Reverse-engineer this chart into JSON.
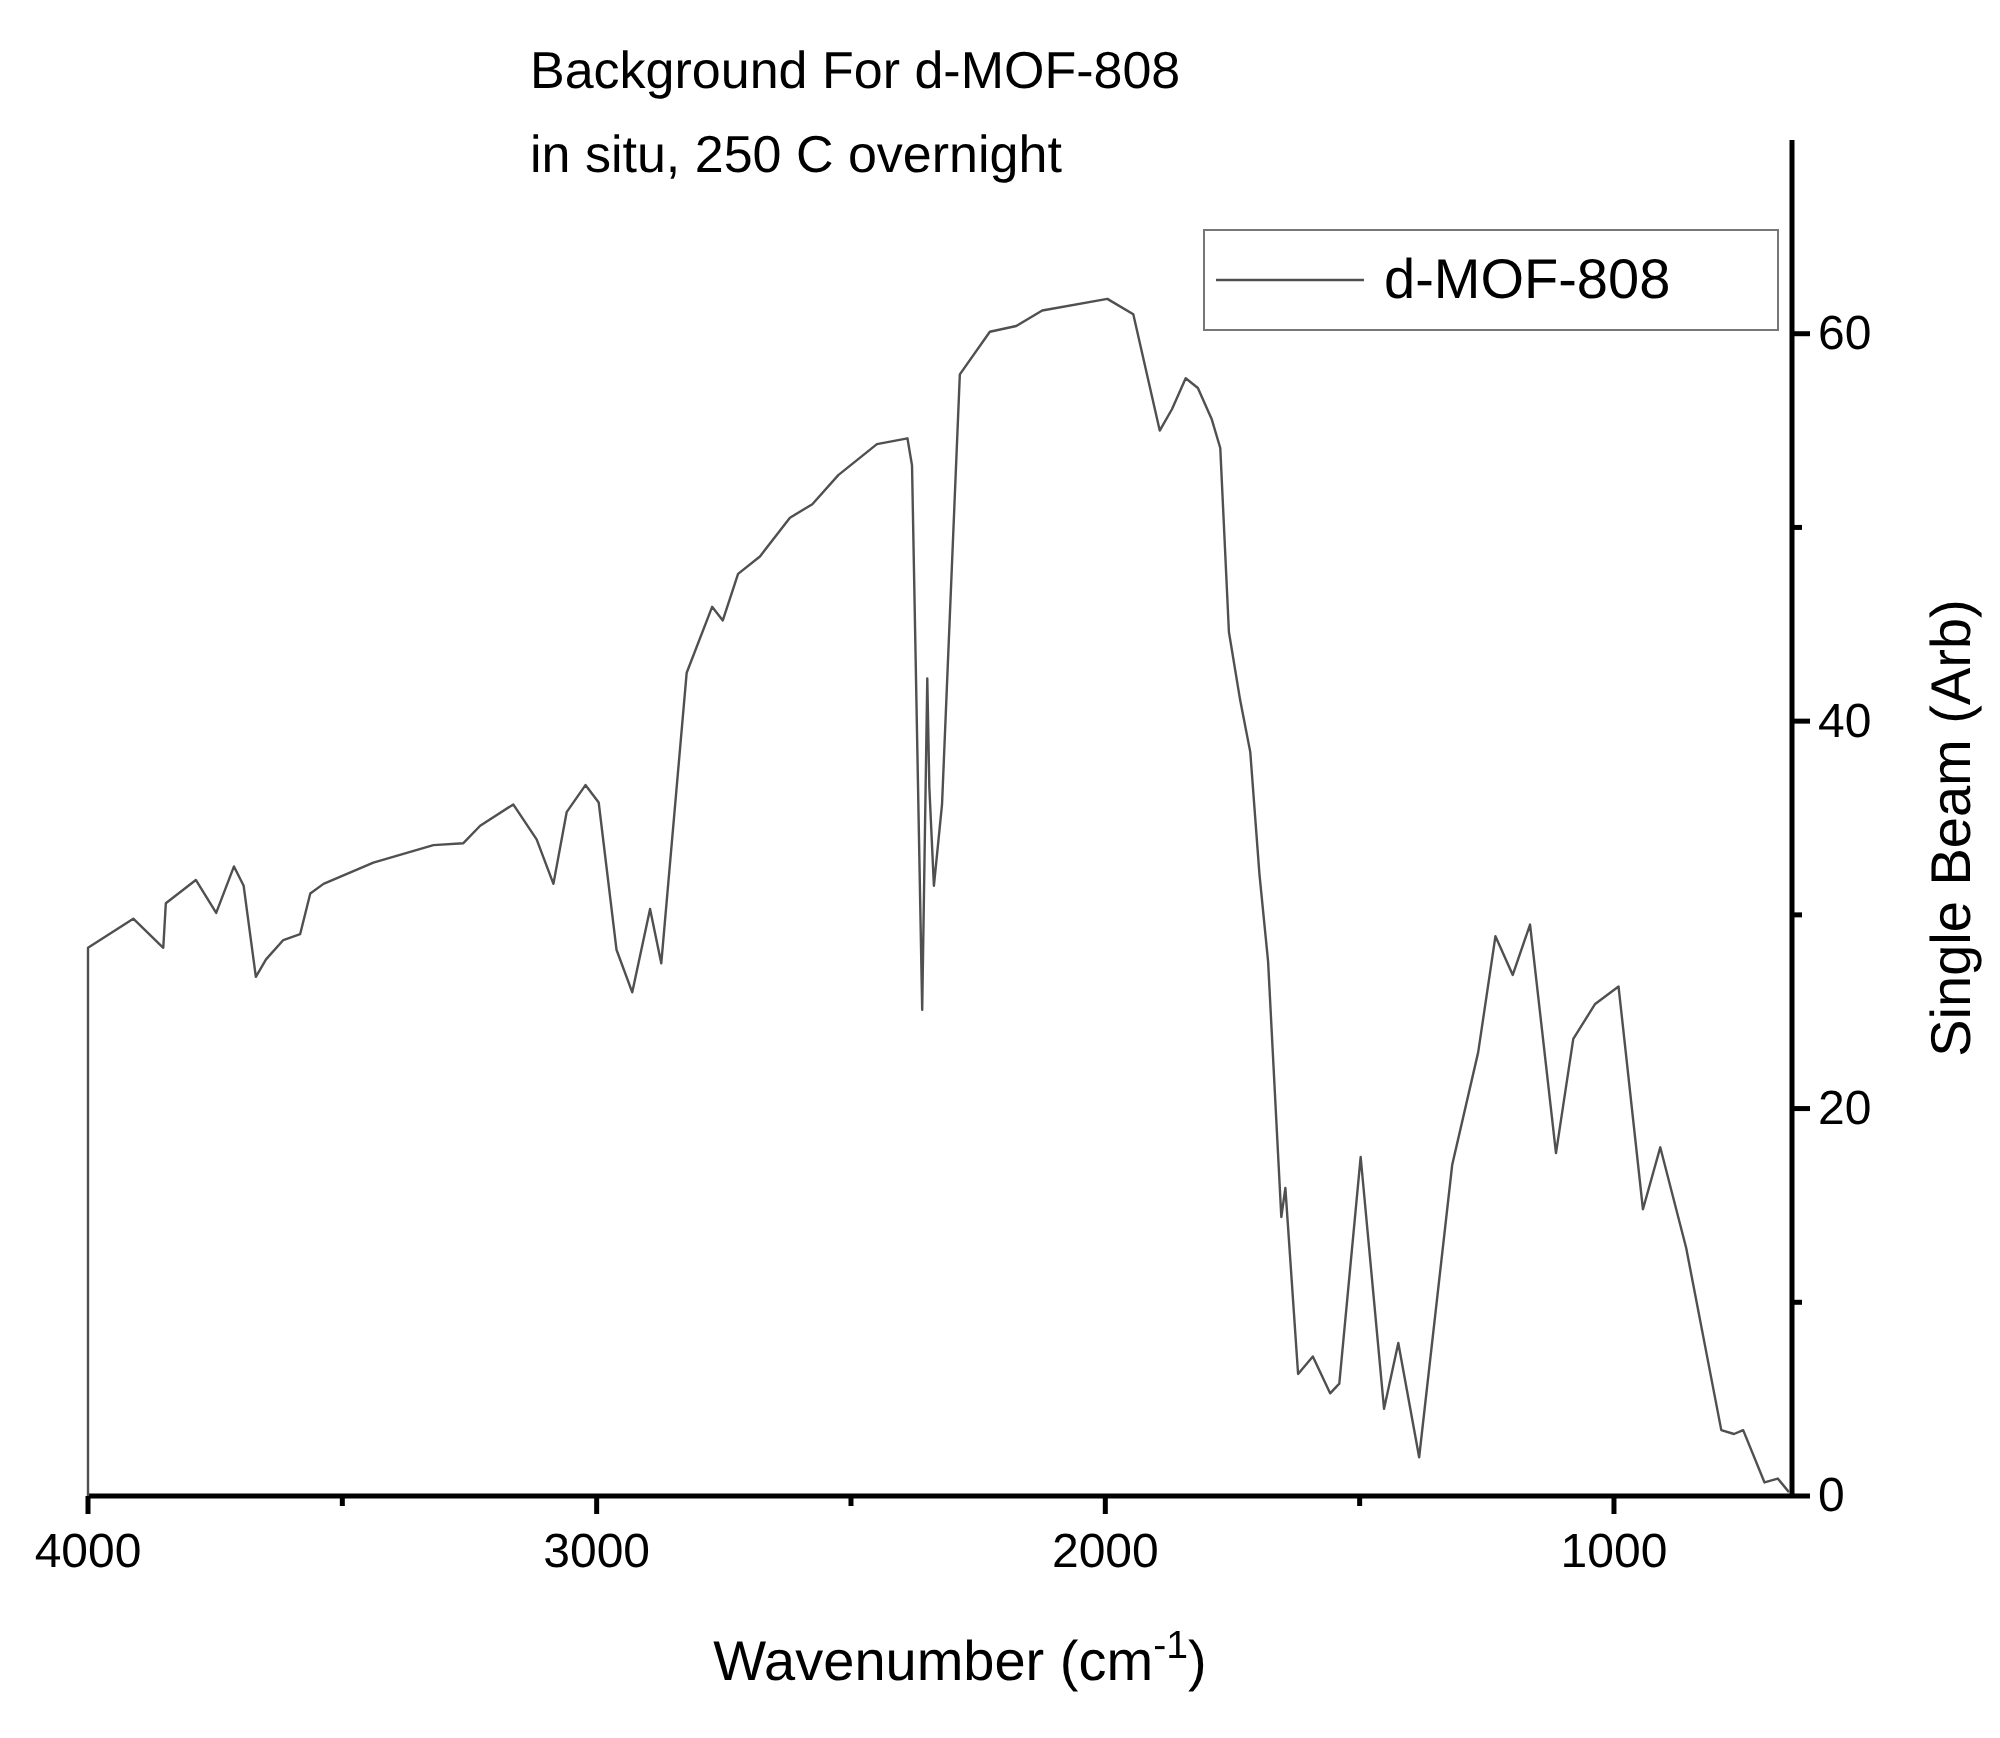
{
  "chart_data": {
    "type": "line",
    "title": "Background For d-MOF-808",
    "subtitle": "in situ, 250 C overnight",
    "xlabel": "Wavenumber (cm$^{-1}$)",
    "ylabel": "Single Beam (Arb)",
    "xlim": [
      4000,
      650
    ],
    "xticks": [
      4000,
      {
        "value": 3500,
        "label": null
      },
      3000,
      {
        "value": 2500,
        "label": null
      },
      2000,
      {
        "value": 1500,
        "label": null
      },
      1000
    ],
    "ylim": [
      0,
      70
    ],
    "yticks": [
      0,
      {
        "value": 10,
        "label": null
      },
      20,
      {
        "value": 30,
        "label": null
      },
      40,
      {
        "value": 50,
        "label": null
      },
      60
    ],
    "legend": "top right",
    "grid": false,
    "marker": "none",
    "line_style": "solid",
    "series": [
      {
        "name": "d-MOF-808",
        "color": "#505050",
        "x": [
          4000,
          4000,
          3911,
          3852,
          3847,
          3788,
          3748,
          3713,
          3694,
          3670,
          3650,
          3616,
          3583,
          3563,
          3537,
          3439,
          3321,
          3262,
          3229,
          3164,
          3118,
          3085,
          3059,
          3022,
          2996,
          2961,
          2930,
          2895,
          2873,
          2823,
          2773,
          2752,
          2722,
          2679,
          2620,
          2576,
          2525,
          2449,
          2389,
          2380,
          2360,
          2350,
          2346,
          2337,
          2321,
          2286,
          2227,
          2175,
          2124,
          1996,
          1945,
          1893,
          1869,
          1842,
          1818,
          1791,
          1774,
          1757,
          1735,
          1715,
          1697,
          1680,
          1654,
          1646,
          1621,
          1592,
          1558,
          1540,
          1498,
          1452,
          1424,
          1383,
          1318,
          1267,
          1233,
          1199,
          1165,
          1114,
          1080,
          1037,
          991,
          943,
          909,
          858,
          789,
          764,
          746,
          704,
          678,
          656
        ],
        "values": [
          0,
          28.3,
          29.8,
          28.3,
          30.6,
          31.8,
          30.1,
          32.5,
          31.5,
          26.8,
          27.7,
          28.7,
          29.0,
          31.1,
          31.6,
          32.7,
          33.6,
          33.7,
          34.6,
          35.7,
          33.9,
          31.6,
          35.3,
          36.7,
          35.8,
          28.2,
          26.0,
          30.3,
          27.5,
          42.5,
          45.9,
          45.2,
          47.6,
          48.5,
          50.5,
          51.2,
          52.7,
          54.3,
          54.6,
          53.2,
          25.1,
          42.2,
          36.6,
          31.5,
          35.7,
          57.9,
          60.1,
          60.4,
          61.2,
          61.8,
          61.0,
          55.0,
          56.1,
          57.7,
          57.2,
          55.6,
          54.1,
          44.6,
          41.1,
          38.4,
          32.1,
          27.6,
          14.4,
          15.9,
          6.3,
          7.2,
          5.3,
          5.8,
          17.5,
          4.5,
          7.9,
          2.0,
          17.1,
          22.9,
          28.9,
          26.9,
          29.5,
          17.7,
          23.6,
          25.4,
          26.3,
          14.8,
          18.0,
          12.8,
          3.4,
          3.2,
          3.4,
          0.7,
          0.9,
          0.2
        ]
      }
    ]
  }
}
